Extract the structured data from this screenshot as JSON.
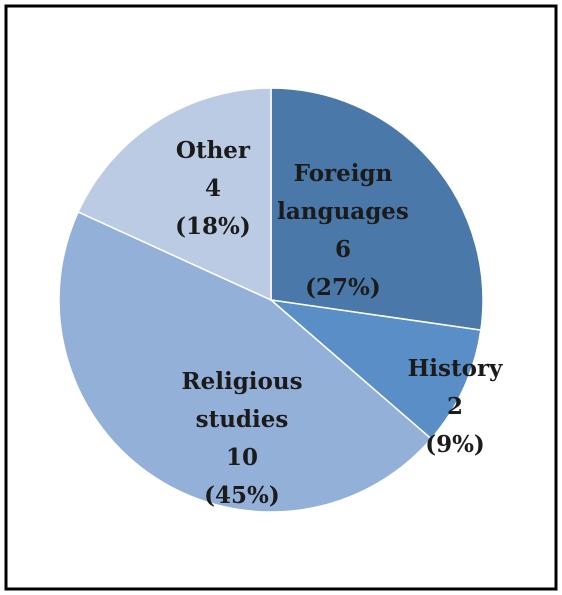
{
  "chart_data": {
    "type": "pie",
    "categories": [
      "Foreign languages",
      "History",
      "Religious studies",
      "Other"
    ],
    "values": [
      6,
      2,
      10,
      4
    ],
    "percent_labels": [
      "(27%)",
      "(9%)",
      "(45%)",
      "(18%)"
    ],
    "colors": [
      "#4a78a8",
      "#5a8ec6",
      "#93b0d9",
      "#bccbe4"
    ]
  }
}
